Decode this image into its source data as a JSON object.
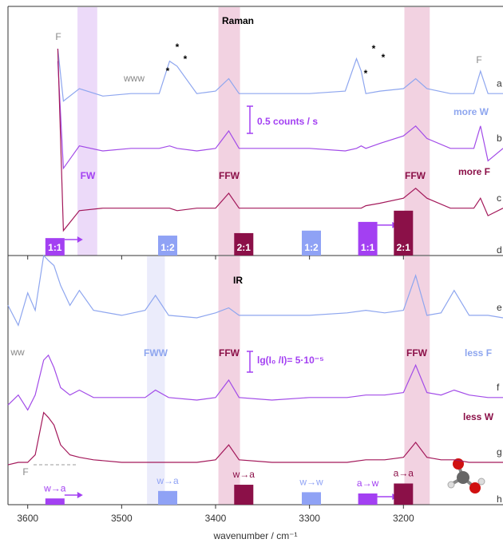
{
  "chart_data": [
    {
      "type": "line",
      "title": "Raman",
      "x": [
        3621,
        3600,
        3585,
        3575,
        3568,
        3562,
        3545,
        3520,
        3490,
        3460,
        3449,
        3441,
        3420,
        3400,
        3386,
        3375,
        3340,
        3300,
        3262,
        3250,
        3245,
        3240,
        3225,
        3200,
        3187,
        3175,
        3150,
        3125,
        3118,
        3110,
        3094
      ],
      "xlim": [
        3621,
        3094
      ],
      "ylim": [
        0,
        100
      ],
      "series": [
        {
          "name": "a",
          "color": "#8ea6ef",
          "values": [
            null,
            null,
            null,
            null,
            83,
            62,
            67,
            64,
            65,
            65,
            78,
            76,
            65,
            66,
            71,
            65,
            65,
            65,
            66,
            79,
            74,
            65,
            66,
            67,
            71,
            67,
            65,
            65,
            74,
            65,
            65
          ]
        },
        {
          "name": "b",
          "color": "#a24be8",
          "values": [
            null,
            null,
            null,
            null,
            78,
            35,
            44,
            42,
            43,
            43,
            44,
            43,
            42,
            43,
            50,
            43,
            43,
            43,
            42,
            43,
            44,
            43,
            45,
            48,
            52,
            47,
            43,
            43,
            52,
            38,
            43
          ]
        },
        {
          "name": "c",
          "color": "#a3185a",
          "values": [
            null,
            null,
            null,
            null,
            83,
            10,
            18,
            19,
            19,
            19,
            19,
            18,
            19,
            19,
            25,
            19,
            19,
            19,
            19,
            19,
            19,
            20,
            21,
            23,
            27,
            23,
            19,
            19,
            23,
            16,
            19
          ]
        }
      ],
      "bands": [
        {
          "x": [
            3547,
            3526
          ],
          "color": "#e6cdf7"
        },
        {
          "x": [
            3397,
            3374
          ],
          "color": "#edc3d7"
        },
        {
          "x": [
            3199,
            3172
          ],
          "color": "#edc3d7"
        }
      ],
      "sticks": {
        "name": "d",
        "x": [
          3571,
          3451,
          3370,
          3298,
          3238,
          3200
        ],
        "values": [
          7,
          8,
          9,
          10,
          13.5,
          18
        ],
        "labels": [
          "1:1",
          "1:2",
          "2:1",
          "1:2",
          "1:1",
          "2:1"
        ],
        "colors": [
          "#a340f2",
          "#8fa2f5",
          "#8b1048",
          "#8fa2f5",
          "#a340f2",
          "#8b1048"
        ]
      },
      "annotations": [
        {
          "text": "F",
          "color": "#888888"
        },
        {
          "text": "F",
          "color": "#888888"
        },
        {
          "text": "www",
          "color": "#888888"
        },
        {
          "text": "*",
          "color": "#000000"
        },
        {
          "text": "*",
          "color": "#000000"
        },
        {
          "text": "*",
          "color": "#000000"
        },
        {
          "text": "*",
          "color": "#000000"
        },
        {
          "text": "*",
          "color": "#000000"
        },
        {
          "text": "*",
          "color": "#000000"
        },
        {
          "text": "0.5 counts / s",
          "color": "#a340f2"
        },
        {
          "text": "more W",
          "color": "#8ea6ef"
        },
        {
          "text": "more F",
          "color": "#8b1048"
        },
        {
          "text": "FW",
          "color": "#a340f2"
        },
        {
          "text": "FFW",
          "color": "#8b1048"
        },
        {
          "text": "FFW",
          "color": "#8b1048"
        }
      ]
    },
    {
      "type": "line",
      "title": "IR",
      "x": [
        3621,
        3610,
        3600,
        3592,
        3583,
        3578,
        3572,
        3565,
        3555,
        3545,
        3530,
        3500,
        3475,
        3464,
        3450,
        3420,
        3400,
        3386,
        3375,
        3340,
        3300,
        3260,
        3240,
        3220,
        3200,
        3187,
        3175,
        3160,
        3146,
        3130,
        3110,
        3094
      ],
      "xlim": [
        3621,
        3094
      ],
      "ylim": [
        0,
        100
      ],
      "xticks": [
        3600,
        3500,
        3400,
        3300,
        3200
      ],
      "xlabel": "wavenumber / cm⁻¹",
      "series": [
        {
          "name": "e",
          "color": "#8ea6ef",
          "values": [
            80,
            72,
            85,
            78,
            100,
            98,
            96,
            88,
            80,
            86,
            78,
            76,
            78,
            84,
            76,
            75,
            77,
            79,
            76,
            76,
            76,
            77,
            78,
            77,
            78,
            92,
            76,
            77,
            86,
            76,
            76,
            75
          ]
        },
        {
          "name": "f",
          "color": "#a24be8",
          "values": [
            40,
            44,
            38,
            44,
            58,
            60,
            55,
            47,
            44,
            46,
            43,
            43,
            43,
            46,
            43,
            42,
            43,
            50,
            43,
            42,
            43,
            43,
            44,
            44,
            45,
            56,
            45,
            44,
            46,
            44,
            43,
            43
          ]
        },
        {
          "name": "g",
          "color": "#a3185a",
          "values": [
            16,
            17,
            17,
            20,
            37,
            35,
            32,
            24,
            20,
            19,
            18,
            17,
            17,
            17,
            17,
            17,
            18,
            24,
            18,
            17,
            17,
            17,
            18,
            18,
            19,
            25,
            19,
            18,
            18,
            17,
            17,
            17
          ]
        }
      ],
      "bands": [
        {
          "x": [
            3473,
            3454
          ],
          "color": "#e4e6f9"
        },
        {
          "x": [
            3397,
            3374
          ],
          "color": "#edc3d7"
        },
        {
          "x": [
            3199,
            3172
          ],
          "color": "#edc3d7"
        }
      ],
      "sticks": {
        "name": "h",
        "x": [
          3571,
          3451,
          3370,
          3298,
          3238,
          3200
        ],
        "values": [
          2.5,
          5.5,
          8,
          5,
          4.5,
          8.5
        ],
        "labels": [
          "w→a",
          "w→a",
          "w→a",
          "w→w",
          "a→w",
          "a→a"
        ],
        "colors": [
          "#a340f2",
          "#8fa2f5",
          "#8b1048",
          "#8fa2f5",
          "#a340f2",
          "#8b1048"
        ]
      },
      "annotations": [
        {
          "text": "ww",
          "color": "#888888"
        },
        {
          "text": "FWW",
          "color": "#8ea6ef"
        },
        {
          "text": "FFW",
          "color": "#8b1048"
        },
        {
          "text": "FFW",
          "color": "#8b1048"
        },
        {
          "text": "lg(I₀ /I)= 5·10⁻⁵",
          "color": "#a340f2"
        },
        {
          "text": "less F",
          "color": "#8ea6ef"
        },
        {
          "text": "less W",
          "color": "#8b1048"
        },
        {
          "text": "F",
          "color": "#888888"
        }
      ]
    }
  ]
}
